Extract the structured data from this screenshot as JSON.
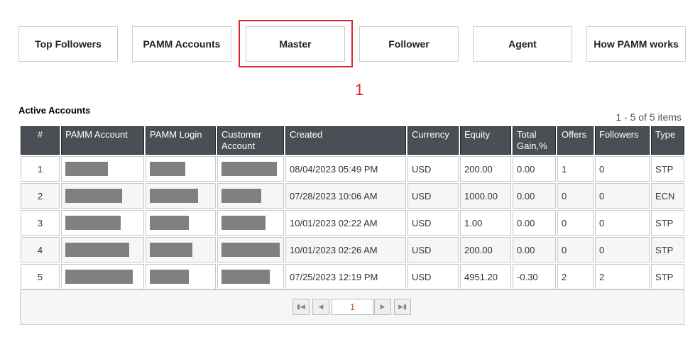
{
  "tabs": [
    "Top Followers",
    "PAMM Accounts",
    "Master",
    "Follower",
    "Agent",
    "How PAMM works"
  ],
  "highlight_marker": "1",
  "section_title": "Active Accounts",
  "items_count": "1 - 5 of 5 items",
  "columns": [
    "#",
    "PAMM Account",
    "PAMM Login",
    "Customer Account",
    "Created",
    "Currency",
    "Equity",
    "Total Gain,%",
    "Offers",
    "Followers",
    "Type"
  ],
  "rows": [
    {
      "num": "1",
      "created": "08/04/2023 05:49 PM",
      "currency": "USD",
      "equity": "200.00",
      "gain": "0.00",
      "offers": "1",
      "followers": "0",
      "type": "STP"
    },
    {
      "num": "2",
      "created": "07/28/2023 10:06 AM",
      "currency": "USD",
      "equity": "1000.00",
      "gain": "0.00",
      "offers": "0",
      "followers": "0",
      "type": "ECN"
    },
    {
      "num": "3",
      "created": "10/01/2023 02:22 AM",
      "currency": "USD",
      "equity": "1.00",
      "gain": "0.00",
      "offers": "0",
      "followers": "0",
      "type": "STP"
    },
    {
      "num": "4",
      "created": "10/01/2023 02:26 AM",
      "currency": "USD",
      "equity": "200.00",
      "gain": "0.00",
      "offers": "0",
      "followers": "0",
      "type": "STP"
    },
    {
      "num": "5",
      "created": "07/25/2023 12:19 PM",
      "currency": "USD",
      "equity": "4951.20",
      "gain": "-0.30",
      "offers": "2",
      "followers": "2",
      "type": "STP"
    }
  ],
  "pager": {
    "page": "1"
  },
  "colors": {
    "highlight": "#e0242b",
    "header_bg": "#4a4f56"
  }
}
